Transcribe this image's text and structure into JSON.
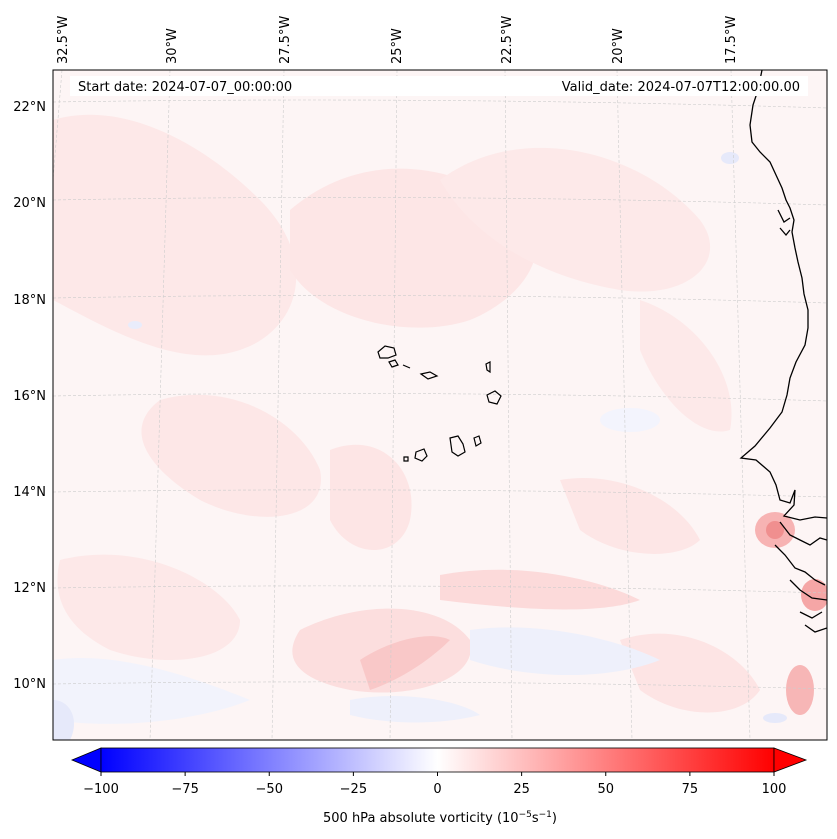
{
  "header": {
    "start_date": "Start date: 2024-07-07_00:00:00",
    "valid_date": "Valid_date: 2024-07-07T12:00:00.00"
  },
  "map": {
    "lon_labels": [
      "32.5°W",
      "30°W",
      "27.5°W",
      "25°W",
      "22.5°W",
      "20°W",
      "17.5°W"
    ],
    "lat_labels": [
      "22°N",
      "20°N",
      "18°N",
      "16°N",
      "14°N",
      "12°N",
      "10°N"
    ],
    "colors": {
      "coastline": "#000000",
      "gridline": "#cccccc",
      "background": "#fdf6f6",
      "positive": "#ff0000",
      "negative": "#0000ff"
    }
  },
  "colorbar": {
    "ticks": [
      "−100",
      "−75",
      "−50",
      "−25",
      "0",
      "25",
      "50",
      "75",
      "100"
    ],
    "label_main": "500 hPa absolute vorticity (10",
    "label_exp1": "−5",
    "label_mid": "s",
    "label_exp2": "−1",
    "label_end": ")",
    "min": -100,
    "max": 100
  }
}
